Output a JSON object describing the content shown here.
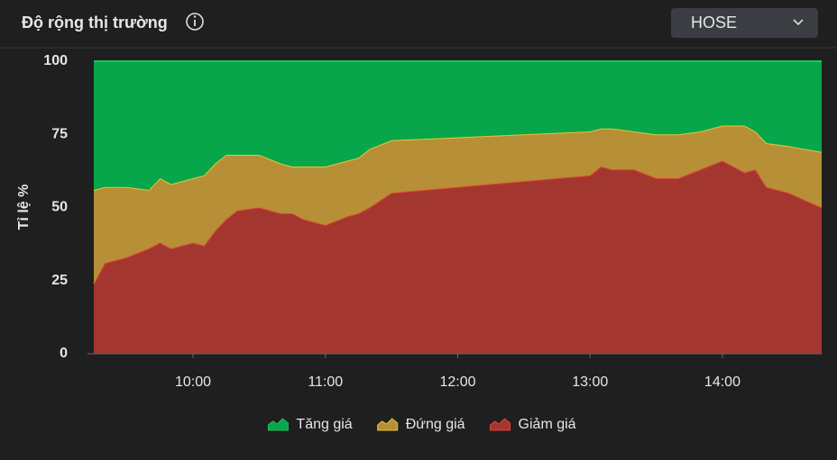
{
  "header": {
    "title": "Độ rộng thị trường",
    "dropdown": "HOSE"
  },
  "chart_data": {
    "type": "stacked-area",
    "y_label": "Tỉ lệ %",
    "x": [
      "09:15",
      "09:20",
      "09:30",
      "09:40",
      "09:45",
      "09:50",
      "10:00",
      "10:05",
      "10:10",
      "10:15",
      "10:20",
      "10:30",
      "10:40",
      "10:45",
      "10:50",
      "11:00",
      "11:10",
      "11:15",
      "11:20",
      "11:30",
      "13:00",
      "13:05",
      "13:10",
      "13:20",
      "13:30",
      "13:40",
      "13:50",
      "14:00",
      "14:10",
      "14:15",
      "14:20",
      "14:30",
      "14:45"
    ],
    "xlim": [
      "09:15",
      "14:45"
    ],
    "xticks": [
      "10:00",
      "11:00",
      "12:00",
      "13:00",
      "14:00"
    ],
    "ylim": [
      0,
      100
    ],
    "yticks": [
      0,
      25,
      50,
      75,
      100
    ],
    "grid": false,
    "legend": "bottom",
    "series": [
      {
        "name": "Tăng giá",
        "color": "#08a64a",
        "line_color": "#1fbf5c",
        "values": [
          44,
          43,
          43,
          44,
          40,
          42,
          40,
          39,
          35,
          32,
          32,
          32,
          35,
          36,
          36,
          36,
          34,
          33,
          30,
          27,
          24,
          23,
          23,
          24,
          25,
          25,
          24,
          22,
          22,
          24,
          28,
          29,
          31
        ]
      },
      {
        "name": "Đứng giá",
        "color": "#b68f36",
        "line_color": "#e8c43c",
        "values": [
          32,
          26,
          24,
          20,
          22,
          22,
          22,
          24,
          23,
          22,
          19,
          18,
          17,
          16,
          18,
          20,
          19,
          19,
          20,
          18,
          15,
          13,
          14,
          13,
          15,
          15,
          13,
          12,
          16,
          13,
          15,
          16,
          19
        ]
      },
      {
        "name": "Giảm giá",
        "color": "#a33730",
        "line_color": "#dd4139",
        "values": [
          24,
          31,
          33,
          36,
          38,
          36,
          38,
          37,
          42,
          46,
          49,
          50,
          48,
          48,
          46,
          44,
          47,
          48,
          50,
          55,
          61,
          64,
          63,
          63,
          60,
          60,
          63,
          66,
          62,
          63,
          57,
          55,
          50
        ]
      }
    ]
  }
}
